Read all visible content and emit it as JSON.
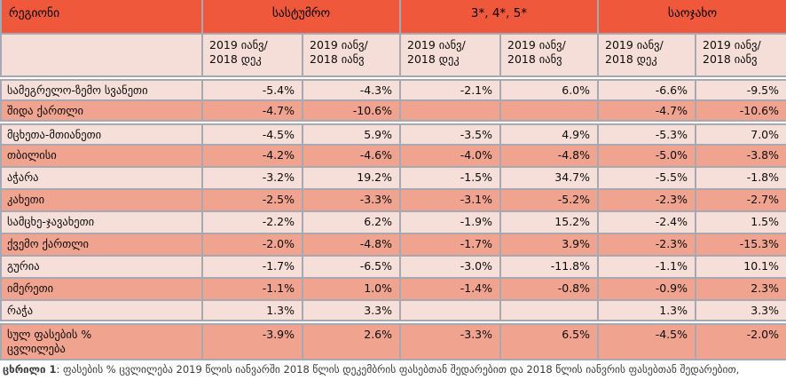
{
  "colors": {
    "header_bg": "#F0583C",
    "row_light": "#F6DFD9",
    "row_dark": "#F0A38F",
    "border": "#A8A8B2",
    "cell_text": "#0B0B0B",
    "caption_text": "#3C3C3C"
  },
  "table": {
    "region_header": "რეგიონი",
    "groups": [
      {
        "label": "სასტუმრო"
      },
      {
        "label": "3*, 4*, 5*"
      },
      {
        "label": "საოჯახო"
      }
    ],
    "period_headers": [
      "2019 იანვ/\n2018 დეკ",
      "2019 იანვ/\n2018 იანვ",
      "2019 იანვ/\n2018 დეკ",
      "2019 იანვ/\n2018 იანვ",
      "2019 იანვ/\n2018 დეკ",
      "2019 იანვ/\n2018 იანვ"
    ],
    "rows": [
      {
        "region": "სამეგრელო-ზემო სვანეთი",
        "values": [
          "-5.4%",
          "-4.3%",
          "-2.1%",
          "6.0%",
          "-6.6%",
          "-9.5%"
        ]
      },
      {
        "region": "შიდა ქართლი",
        "values": [
          "-4.7%",
          "-10.6%",
          "",
          "",
          "-4.7%",
          "-10.6%"
        ]
      },
      {
        "region": "მცხეთა-მთიანეთი",
        "values": [
          "-4.5%",
          "5.9%",
          "-3.5%",
          "4.9%",
          "-5.3%",
          "7.0%"
        ]
      },
      {
        "region": "თბილისი",
        "values": [
          "-4.2%",
          "-4.6%",
          "-4.0%",
          "-4.8%",
          "-5.0%",
          "-3.8%"
        ]
      },
      {
        "region": "აჭარა",
        "values": [
          "-3.2%",
          "19.2%",
          "-1.5%",
          "34.7%",
          "-5.5%",
          "-1.8%"
        ]
      },
      {
        "region": "კახეთი",
        "values": [
          "-2.5%",
          "-3.3%",
          "-3.1%",
          "-5.2%",
          "-2.3%",
          "-2.7%"
        ]
      },
      {
        "region": "სამცხე-ჯავახეთი",
        "values": [
          "-2.2%",
          "6.2%",
          "-1.9%",
          "15.2%",
          "-2.4%",
          "1.5%"
        ]
      },
      {
        "region": "ქვემო ქართლი",
        "values": [
          "-2.0%",
          "-4.8%",
          "-1.7%",
          "3.9%",
          "-2.3%",
          "-15.3%"
        ]
      },
      {
        "region": "გურია",
        "values": [
          "-1.7%",
          "-6.5%",
          "-3.0%",
          "-11.8%",
          "-1.1%",
          "10.1%"
        ]
      },
      {
        "region": "იმერეთი",
        "values": [
          "-1.1%",
          "1.0%",
          "-1.4%",
          "-0.8%",
          "-0.9%",
          "2.3%"
        ]
      },
      {
        "region": "რაჭა",
        "values": [
          "1.3%",
          "3.3%",
          "",
          "",
          "1.3%",
          "3.3%"
        ]
      },
      {
        "region": "სულ ფასების %\nცვლილება",
        "values": [
          "-3.9%",
          "2.6%",
          "-3.3%",
          "6.5%",
          "-4.5%",
          "-2.0%"
        ]
      }
    ],
    "group_start_row_indices": [
      0,
      2,
      11
    ],
    "last_row_index": 11
  },
  "footer": {
    "caption_label": "ცხრილი 1",
    "caption_text": ": ფასების % ცვლილება 2019 წლის იანვარში 2018 წლის დეკემბრის ფასებთან შედარებით და 2018 წლის იანვრის ფასებთან შედარებით,"
  }
}
